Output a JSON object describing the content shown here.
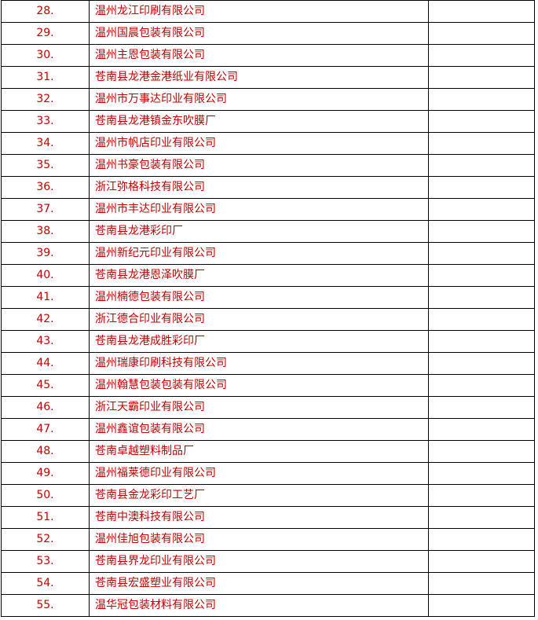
{
  "table": {
    "rows": [
      [
        "28.",
        "温州龙江印刷有限公司"
      ],
      [
        "29.",
        "温州国晨包装有限公司"
      ],
      [
        "30.",
        "温州主恩包装有限公司"
      ],
      [
        "31.",
        "苍南县龙港金港纸业有限公司"
      ],
      [
        "32.",
        "温州市万事达印业有限公司"
      ],
      [
        "33.",
        "苍南县龙港镇金东吹膜厂"
      ],
      [
        "34.",
        "温州市帆店印业有限公司"
      ],
      [
        "35.",
        "温州书豪包装有限公司"
      ],
      [
        "36.",
        "浙江弥格科技有限公司"
      ],
      [
        "37.",
        "温州市丰达印业有限公司"
      ],
      [
        "38.",
        "苍南县龙港彩印厂"
      ],
      [
        "39.",
        "温州新纪元印业有限公司"
      ],
      [
        "40.",
        "苍南县龙港恩泽吹膜厂"
      ],
      [
        "41.",
        "温州楠德包装有限公司"
      ],
      [
        "42.",
        "浙江德合印业有限公司"
      ],
      [
        "43.",
        "苍南县龙港成胜彩印厂"
      ],
      [
        "44.",
        "温州瑞康印刷科技有限公司"
      ],
      [
        "45.",
        "温州翰慧包装包装有限公司"
      ],
      [
        "46.",
        "浙江天霸印业有限公司"
      ],
      [
        "47.",
        "温州鑫谊包装有限公司"
      ],
      [
        "48.",
        "苍南卓越塑料制品厂"
      ],
      [
        "49.",
        "温州福莱德印业有限公司"
      ],
      [
        "50.",
        "苍南县金龙彩印工艺厂"
      ],
      [
        "51.",
        "苍南中澳科技有限公司"
      ],
      [
        "52.",
        "温州佳旭包装有限公司"
      ],
      [
        "53.",
        "苍南县界龙印业有限公司"
      ],
      [
        "54.",
        "苍南县宏盛塑业有限公司"
      ],
      [
        "55.",
        "温华冠包装材料有限公司"
      ]
    ]
  }
}
